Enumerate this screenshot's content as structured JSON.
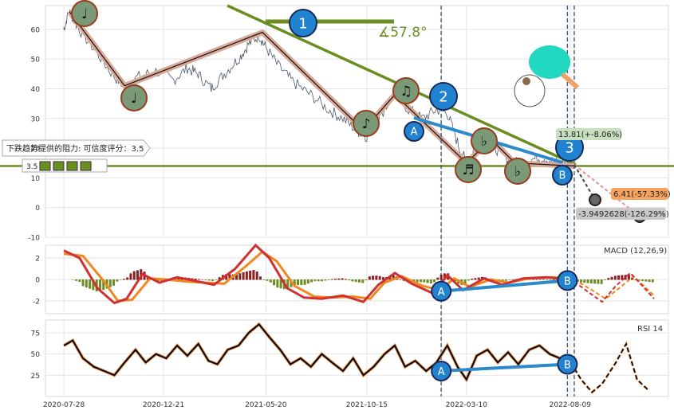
{
  "chart_data": {
    "type": "line",
    "x_ticks": [
      "2020-07-28",
      "2020-12-21",
      "2021-05-20",
      "2021-10-15",
      "2022-03-10",
      "2022-08-09"
    ],
    "price_panel": {
      "ylim": [
        -10,
        68
      ],
      "y_ticks": [
        -10,
        0,
        10,
        20,
        30,
        40,
        50,
        60
      ],
      "price_series": [
        {
          "d": "2020-07-28",
          "v": 60
        },
        {
          "d": "2020-08-05",
          "v": 66
        },
        {
          "d": "2020-08-20",
          "v": 60
        },
        {
          "d": "2020-09-15",
          "v": 52
        },
        {
          "d": "2020-10-10",
          "v": 44
        },
        {
          "d": "2020-10-25",
          "v": 41
        },
        {
          "d": "2020-11-15",
          "v": 44
        },
        {
          "d": "2020-12-10",
          "v": 46
        },
        {
          "d": "2021-01-05",
          "v": 43
        },
        {
          "d": "2021-01-25",
          "v": 47
        },
        {
          "d": "2021-02-10",
          "v": 45
        },
        {
          "d": "2021-03-01",
          "v": 40
        },
        {
          "d": "2021-03-20",
          "v": 45
        },
        {
          "d": "2021-04-10",
          "v": 50
        },
        {
          "d": "2021-04-25",
          "v": 55
        },
        {
          "d": "2021-05-10",
          "v": 58
        },
        {
          "d": "2021-05-20",
          "v": 54
        },
        {
          "d": "2021-06-10",
          "v": 47
        },
        {
          "d": "2021-07-01",
          "v": 42
        },
        {
          "d": "2021-07-25",
          "v": 38
        },
        {
          "d": "2021-08-20",
          "v": 33
        },
        {
          "d": "2021-09-10",
          "v": 30
        },
        {
          "d": "2021-10-01",
          "v": 26
        },
        {
          "d": "2021-10-15",
          "v": 24
        },
        {
          "d": "2021-11-01",
          "v": 30
        },
        {
          "d": "2021-11-25",
          "v": 38
        },
        {
          "d": "2021-12-15",
          "v": 33
        },
        {
          "d": "2022-01-05",
          "v": 30
        },
        {
          "d": "2022-01-25",
          "v": 33
        },
        {
          "d": "2022-02-10",
          "v": 32
        },
        {
          "d": "2022-02-25",
          "v": 22
        },
        {
          "d": "2022-03-10",
          "v": 15
        },
        {
          "d": "2022-03-25",
          "v": 21
        },
        {
          "d": "2022-04-10",
          "v": 23
        },
        {
          "d": "2022-05-01",
          "v": 18
        },
        {
          "d": "2022-05-20",
          "v": 15
        },
        {
          "d": "2022-06-10",
          "v": 16
        },
        {
          "d": "2022-07-01",
          "v": 17
        },
        {
          "d": "2022-07-20",
          "v": 15
        },
        {
          "d": "2022-08-05",
          "v": 15
        },
        {
          "d": "2022-08-15",
          "v": 14
        }
      ],
      "zigzag": [
        {
          "d": "2020-08-05",
          "v": 66
        },
        {
          "d": "2020-10-25",
          "v": 41
        },
        {
          "d": "2021-05-15",
          "v": 59
        },
        {
          "d": "2021-10-10",
          "v": 26
        },
        {
          "d": "2021-11-25",
          "v": 38
        },
        {
          "d": "2022-03-10",
          "v": 15
        },
        {
          "d": "2022-04-15",
          "v": 23
        },
        {
          "d": "2022-05-20",
          "v": 15
        },
        {
          "d": "2022-08-15",
          "v": 14
        }
      ],
      "pivot_labels": [
        "♩",
        "♩",
        "1",
        "♪",
        "♫",
        "2",
        "♬",
        "♭",
        "♭",
        "3",
        "A",
        "B"
      ],
      "resistance_label": "下跌趋势提供的阻力: 可信度评分：3.5",
      "badge_score": "3.5",
      "angle_label": "∡57.8°",
      "support_level": 14,
      "projection_labels": [
        "13.81(+-8.06%)",
        "6.41(-57.33%)",
        "-3.9492628(-126.29%)"
      ],
      "projection_targets": [
        13.81,
        6.41,
        -3.95
      ]
    },
    "macd_panel": {
      "title": "MACD (12,26,9)",
      "ylim": [
        -3.2,
        3.2
      ],
      "y_ticks": [
        -2,
        0,
        2
      ],
      "macd": [
        {
          "d": "2020-07-28",
          "v": 2.7
        },
        {
          "d": "2020-08-20",
          "v": 2.0
        },
        {
          "d": "2020-09-15",
          "v": -0.8
        },
        {
          "d": "2020-10-10",
          "v": -2.2
        },
        {
          "d": "2020-10-28",
          "v": -1.8
        },
        {
          "d": "2020-11-20",
          "v": 0.5
        },
        {
          "d": "2020-12-15",
          "v": -0.3
        },
        {
          "d": "2021-01-10",
          "v": 0.2
        },
        {
          "d": "2021-02-10",
          "v": -0.2
        },
        {
          "d": "2021-03-05",
          "v": -0.5
        },
        {
          "d": "2021-04-05",
          "v": 1.0
        },
        {
          "d": "2021-05-05",
          "v": 3.2
        },
        {
          "d": "2021-05-25",
          "v": 2.0
        },
        {
          "d": "2021-06-20",
          "v": -0.8
        },
        {
          "d": "2021-07-15",
          "v": -1.7
        },
        {
          "d": "2021-08-10",
          "v": -1.8
        },
        {
          "d": "2021-09-10",
          "v": -1.5
        },
        {
          "d": "2021-10-10",
          "v": -2.1
        },
        {
          "d": "2021-11-01",
          "v": -0.5
        },
        {
          "d": "2021-11-25",
          "v": 0.6
        },
        {
          "d": "2021-12-20",
          "v": -0.4
        },
        {
          "d": "2022-01-20",
          "v": -1.3
        },
        {
          "d": "2022-02-10",
          "v": 0.4
        },
        {
          "d": "2022-03-05",
          "v": -1.0
        },
        {
          "d": "2022-04-05",
          "v": 0.1
        },
        {
          "d": "2022-05-01",
          "v": -0.5
        },
        {
          "d": "2022-06-01",
          "v": 0.1
        },
        {
          "d": "2022-07-05",
          "v": 0.2
        },
        {
          "d": "2022-08-05",
          "v": 0.0
        }
      ],
      "signal": [
        {
          "d": "2020-07-28",
          "v": 2.4
        },
        {
          "d": "2020-08-25",
          "v": 2.2
        },
        {
          "d": "2020-09-25",
          "v": -0.2
        },
        {
          "d": "2020-10-15",
          "v": -2.0
        },
        {
          "d": "2020-11-05",
          "v": -1.9
        },
        {
          "d": "2020-12-01",
          "v": 0.1
        },
        {
          "d": "2020-12-25",
          "v": 0.0
        },
        {
          "d": "2021-01-25",
          "v": -0.2
        },
        {
          "d": "2021-02-20",
          "v": -0.3
        },
        {
          "d": "2021-03-20",
          "v": -0.4
        },
        {
          "d": "2021-04-20",
          "v": 1.2
        },
        {
          "d": "2021-05-15",
          "v": 2.6
        },
        {
          "d": "2021-06-05",
          "v": 1.7
        },
        {
          "d": "2021-07-01",
          "v": -0.6
        },
        {
          "d": "2021-07-30",
          "v": -1.6
        },
        {
          "d": "2021-08-25",
          "v": -1.7
        },
        {
          "d": "2021-09-25",
          "v": -1.6
        },
        {
          "d": "2021-10-20",
          "v": -1.8
        },
        {
          "d": "2021-11-10",
          "v": -0.3
        },
        {
          "d": "2021-12-05",
          "v": 0.3
        },
        {
          "d": "2022-01-05",
          "v": -0.6
        },
        {
          "d": "2022-01-30",
          "v": -1.0
        },
        {
          "d": "2022-02-20",
          "v": 0.1
        },
        {
          "d": "2022-03-15",
          "v": -0.7
        },
        {
          "d": "2022-04-15",
          "v": 0.0
        },
        {
          "d": "2022-05-10",
          "v": -0.3
        },
        {
          "d": "2022-06-10",
          "v": 0.1
        },
        {
          "d": "2022-07-15",
          "v": 0.2
        },
        {
          "d": "2022-08-05",
          "v": 0.1
        }
      ],
      "projection_macd": [
        {
          "d": "2022-08-15",
          "v": -0.2
        },
        {
          "d": "2022-09-05",
          "v": -1.2
        },
        {
          "d": "2022-09-25",
          "v": -2.1
        },
        {
          "d": "2022-10-15",
          "v": -0.6
        },
        {
          "d": "2022-11-05",
          "v": 0.6
        },
        {
          "d": "2022-11-20",
          "v": -0.4
        },
        {
          "d": "2022-12-10",
          "v": -1.8
        }
      ],
      "projection_signal": [
        {
          "d": "2022-08-15",
          "v": 0.0
        },
        {
          "d": "2022-09-10",
          "v": -1.0
        },
        {
          "d": "2022-09-30",
          "v": -1.8
        },
        {
          "d": "2022-10-20",
          "v": -0.8
        },
        {
          "d": "2022-11-10",
          "v": 0.3
        },
        {
          "d": "2022-11-25",
          "v": -0.6
        },
        {
          "d": "2022-12-10",
          "v": -1.5
        }
      ],
      "divergence": {
        "a": {
          "d": "2022-02-01",
          "v": -1.1
        },
        "b": {
          "d": "2022-08-05",
          "v": -0.1
        }
      },
      "labels": [
        "A",
        "B"
      ]
    },
    "rsi_panel": {
      "title": "RSI 14",
      "ylim": [
        0,
        90
      ],
      "y_ticks": [
        25,
        50,
        75
      ],
      "rsi": [
        {
          "d": "2020-07-28",
          "v": 60
        },
        {
          "d": "2020-08-10",
          "v": 66
        },
        {
          "d": "2020-08-25",
          "v": 45
        },
        {
          "d": "2020-09-10",
          "v": 35
        },
        {
          "d": "2020-09-25",
          "v": 30
        },
        {
          "d": "2020-10-10",
          "v": 25
        },
        {
          "d": "2020-10-25",
          "v": 40
        },
        {
          "d": "2020-11-10",
          "v": 55
        },
        {
          "d": "2020-11-25",
          "v": 40
        },
        {
          "d": "2020-12-10",
          "v": 50
        },
        {
          "d": "2020-12-25",
          "v": 45
        },
        {
          "d": "2021-01-10",
          "v": 60
        },
        {
          "d": "2021-01-25",
          "v": 48
        },
        {
          "d": "2021-02-10",
          "v": 62
        },
        {
          "d": "2021-02-25",
          "v": 42
        },
        {
          "d": "2021-03-10",
          "v": 38
        },
        {
          "d": "2021-03-25",
          "v": 55
        },
        {
          "d": "2021-04-10",
          "v": 60
        },
        {
          "d": "2021-04-25",
          "v": 75
        },
        {
          "d": "2021-05-10",
          "v": 85
        },
        {
          "d": "2021-05-25",
          "v": 70
        },
        {
          "d": "2021-06-10",
          "v": 55
        },
        {
          "d": "2021-06-25",
          "v": 38
        },
        {
          "d": "2021-07-10",
          "v": 45
        },
        {
          "d": "2021-07-25",
          "v": 35
        },
        {
          "d": "2021-08-10",
          "v": 50
        },
        {
          "d": "2021-08-25",
          "v": 40
        },
        {
          "d": "2021-09-10",
          "v": 30
        },
        {
          "d": "2021-09-25",
          "v": 45
        },
        {
          "d": "2021-10-10",
          "v": 25
        },
        {
          "d": "2021-10-25",
          "v": 35
        },
        {
          "d": "2021-11-10",
          "v": 50
        },
        {
          "d": "2021-11-25",
          "v": 60
        },
        {
          "d": "2021-12-10",
          "v": 35
        },
        {
          "d": "2021-12-25",
          "v": 42
        },
        {
          "d": "2022-01-10",
          "v": 30
        },
        {
          "d": "2022-01-25",
          "v": 40
        },
        {
          "d": "2022-02-10",
          "v": 60
        },
        {
          "d": "2022-02-25",
          "v": 35
        },
        {
          "d": "2022-03-10",
          "v": 20
        },
        {
          "d": "2022-03-25",
          "v": 48
        },
        {
          "d": "2022-04-10",
          "v": 55
        },
        {
          "d": "2022-04-25",
          "v": 40
        },
        {
          "d": "2022-05-10",
          "v": 52
        },
        {
          "d": "2022-05-25",
          "v": 38
        },
        {
          "d": "2022-06-10",
          "v": 55
        },
        {
          "d": "2022-06-25",
          "v": 60
        },
        {
          "d": "2022-07-10",
          "v": 50
        },
        {
          "d": "2022-07-25",
          "v": 45
        },
        {
          "d": "2022-08-05",
          "v": 40
        }
      ],
      "projection": [
        {
          "d": "2022-08-10",
          "v": 40
        },
        {
          "d": "2022-08-25",
          "v": 20
        },
        {
          "d": "2022-09-10",
          "v": 5
        },
        {
          "d": "2022-09-25",
          "v": 15
        },
        {
          "d": "2022-10-15",
          "v": 40
        },
        {
          "d": "2022-10-30",
          "v": 62
        },
        {
          "d": "2022-11-15",
          "v": 20
        },
        {
          "d": "2022-12-01",
          "v": 8
        }
      ],
      "divergence": {
        "a": {
          "d": "2022-02-01",
          "v": 30
        },
        "b": {
          "d": "2022-08-05",
          "v": 38
        }
      },
      "labels": [
        "A",
        "B"
      ]
    },
    "x_range": [
      "2020-07-01",
      "2022-12-31"
    ],
    "grid": true,
    "vlines": [
      "2022-02-01",
      "2022-08-05",
      "2022-08-15"
    ]
  },
  "colors": {
    "price": "#4a5768",
    "zigzag_halo": "#d9a999",
    "zigzag_line": "#111111",
    "pivot_fill": "#7a9a77",
    "pivot_stroke": "#9a3b1e",
    "badge_fill": "#2183cf",
    "badge_stroke": "#1a2a5a",
    "trendline": "#6b8e23",
    "divergence": "#2a8acb",
    "macd": "#d03030",
    "signal": "#f08820",
    "hist_pos": "#8b2020",
    "hist_neg": "#6b8e23",
    "rsi": "#000000",
    "rsi_halo": "#f0a060",
    "vline": "#3a5a80",
    "label_green": "#c8e0c0",
    "label_orange": "#f5a460",
    "label_gray": "#c8c8c8"
  }
}
